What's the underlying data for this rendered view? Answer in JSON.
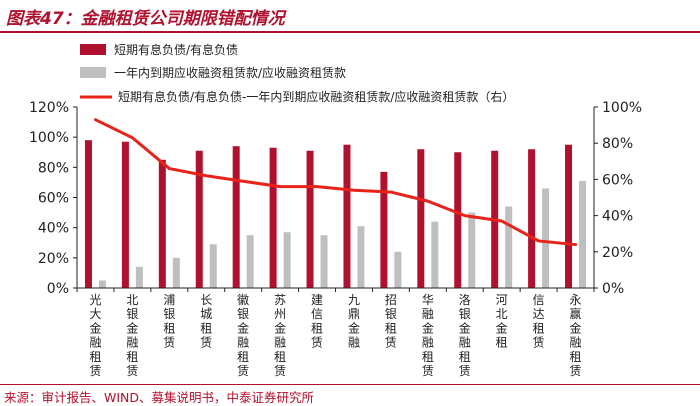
{
  "header": {
    "title": "图表47：金融租赁公司期限错配情况"
  },
  "footer": {
    "source": "来源：审计报告、WIND、募集说明书，中泰证券研究所"
  },
  "colors": {
    "bar_primary": "#b0112e",
    "bar_secondary": "#bfbfbf",
    "line": "#e8231a",
    "accent": "#b0112e"
  },
  "chart_data": {
    "type": "bar",
    "legend_position": "top",
    "grid": false,
    "categories": [
      "光大金融租赁",
      "北银金融租赁",
      "浦银租赁",
      "长城租赁",
      "徽银金融租赁",
      "苏州金融租赁",
      "建信租赁",
      "九鼎金融",
      "招银租赁",
      "华融金融租赁",
      "洛银金融租赁",
      "河北金租",
      "信达租赁",
      "永赢金融租赁"
    ],
    "series": [
      {
        "name": "短期有息负债/有息负债",
        "kind": "bar",
        "axis": "left",
        "values": [
          98,
          97,
          85,
          91,
          94,
          93,
          91,
          95,
          77,
          92,
          90,
          91,
          92,
          95
        ]
      },
      {
        "name": "一年内到期应收融资租赁款/应收融资租赁款",
        "kind": "bar",
        "axis": "left",
        "values": [
          5,
          14,
          20,
          29,
          35,
          37,
          35,
          41,
          24,
          44,
          50,
          54,
          66,
          71
        ]
      },
      {
        "name": "短期有息负债/有息负债-一年内到期应收融资租赁款/应收融资租赁款（右）",
        "kind": "line",
        "axis": "right",
        "values": [
          93,
          83,
          66,
          62,
          59,
          56,
          56,
          54,
          53,
          48,
          40,
          37,
          26,
          24
        ]
      }
    ],
    "y_left": {
      "min": 0,
      "max": 120,
      "step": 20,
      "ticks": [
        "0%",
        "20%",
        "40%",
        "60%",
        "80%",
        "100%",
        "120%"
      ]
    },
    "y_right": {
      "min": 0,
      "max": 100,
      "step": 20,
      "ticks": [
        "0%",
        "20%",
        "40%",
        "60%",
        "80%",
        "100%"
      ]
    }
  }
}
